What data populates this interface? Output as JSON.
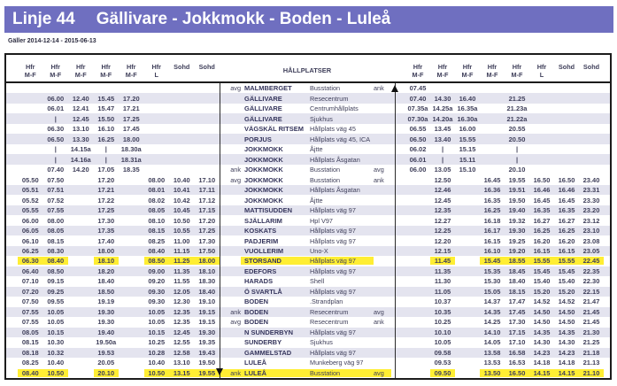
{
  "banner": {
    "line_label": "Linje 44",
    "route_label": "Gällivare - Jokkmokk - Boden - Luleå"
  },
  "validity": "Gäller 2014-12-14 - 2015-06-13",
  "colors": {
    "banner_bg": "#6f6fc0",
    "row_shade": "#e4e4ef",
    "highlight_yellow": "#ffee33",
    "text": "#3f3f5a",
    "border": "#1c1c1c"
  },
  "header": {
    "stops_label": "HÅLLPLATSER",
    "left_columns": [
      {
        "top": "Hfr",
        "bottom": "M-F"
      },
      {
        "top": "Hfr",
        "bottom": "M-F"
      },
      {
        "top": "Hfr",
        "bottom": "M-F"
      },
      {
        "top": "Hfr",
        "bottom": "M-F"
      },
      {
        "top": "Hfr",
        "bottom": "M-F"
      },
      {
        "top": "Hfr",
        "bottom": "L"
      },
      {
        "top": "",
        "bottom": "Sohd"
      },
      {
        "top": "",
        "bottom": "Sohd"
      }
    ],
    "right_columns": [
      {
        "top": "Hfr",
        "bottom": "M-F"
      },
      {
        "top": "Hfr",
        "bottom": "M-F"
      },
      {
        "top": "Hfr",
        "bottom": "M-F"
      },
      {
        "top": "Hfr",
        "bottom": "M-F"
      },
      {
        "top": "Hfr",
        "bottom": "M-F"
      },
      {
        "top": "Hfr",
        "bottom": "L"
      },
      {
        "top": "",
        "bottom": "Sohd"
      },
      {
        "top": "",
        "bottom": "Sohd"
      }
    ]
  },
  "icons": {
    "up_arrow": "direction-up-arrow",
    "down_arrow": "direction-down-arrow"
  },
  "rows": [
    {
      "prefix": "avg",
      "name": "MALMBERGET",
      "desc": "Busstation",
      "suffix": "ank",
      "shaded": false,
      "highlight": false,
      "left": [
        "",
        "",
        "",
        "",
        "",
        "",
        "",
        ""
      ],
      "right": [
        "07.45",
        "",
        "",
        "",
        "",
        "",
        "",
        ""
      ]
    },
    {
      "prefix": "",
      "name": "GÄLLIVARE",
      "desc": "Resecentrum",
      "suffix": "",
      "shaded": true,
      "highlight": false,
      "left": [
        "",
        "06.00",
        "12.40",
        "15.45",
        "17.20",
        "",
        "",
        ""
      ],
      "right": [
        "07.40",
        "14.30",
        "16.40",
        "",
        "21.25",
        "",
        "",
        ""
      ]
    },
    {
      "prefix": "",
      "name": "GÄLLIVARE",
      "desc": "Centrumhållplats",
      "suffix": "",
      "shaded": false,
      "highlight": false,
      "left": [
        "",
        "06.01",
        "12.41",
        "15.47",
        "17.21",
        "",
        "",
        ""
      ],
      "right": [
        "07.35a",
        "14.25a",
        "16.35a",
        "",
        "21.23a",
        "",
        "",
        ""
      ]
    },
    {
      "prefix": "",
      "name": "GÄLLIVARE",
      "desc": "Sjukhus",
      "suffix": "",
      "shaded": true,
      "highlight": false,
      "left": [
        "",
        "|",
        "12.45",
        "15.50",
        "17.25",
        "",
        "",
        ""
      ],
      "right": [
        "07.30a",
        "14.20a",
        "16.30a",
        "",
        "21.22a",
        "",
        "",
        ""
      ]
    },
    {
      "prefix": "",
      "name": "VÄGSKÄL RITSEM",
      "desc": "Hållplats väg 45",
      "suffix": "",
      "shaded": false,
      "highlight": false,
      "left": [
        "",
        "06.30",
        "13.10",
        "16.10",
        "17.45",
        "",
        "",
        ""
      ],
      "right": [
        "06.55",
        "13.45",
        "16.00",
        "",
        "20.55",
        "",
        "",
        ""
      ]
    },
    {
      "prefix": "",
      "name": "PORJUS",
      "desc": "Hållplats väg 45, ICA",
      "suffix": "",
      "shaded": true,
      "highlight": false,
      "left": [
        "",
        "06.50",
        "13.30",
        "16.25",
        "18.00",
        "",
        "",
        ""
      ],
      "right": [
        "06.50",
        "13.40",
        "15.55",
        "",
        "20.50",
        "",
        "",
        ""
      ]
    },
    {
      "prefix": "",
      "name": "JOKKMOKK",
      "desc": "Åjtte",
      "suffix": "",
      "shaded": false,
      "highlight": false,
      "left": [
        "",
        "|",
        "14.15a",
        "|",
        "18.30a",
        "",
        "",
        ""
      ],
      "right": [
        "06.02",
        "|",
        "15.15",
        "",
        "|",
        "",
        "",
        ""
      ]
    },
    {
      "prefix": "",
      "name": "JOKKMOKK",
      "desc": "Hållplats Åsgatan",
      "suffix": "",
      "shaded": true,
      "highlight": false,
      "left": [
        "",
        "|",
        "14.16a",
        "|",
        "18.31a",
        "",
        "",
        ""
      ],
      "right": [
        "06.01",
        "|",
        "15.11",
        "",
        "|",
        "",
        "",
        ""
      ]
    },
    {
      "prefix": "ank",
      "name": "JOKKMOKK",
      "desc": "Busstation",
      "suffix": "avg",
      "shaded": false,
      "highlight": false,
      "left": [
        "",
        "07.40",
        "14.20",
        "17.05",
        "18.35",
        "",
        "",
        ""
      ],
      "right": [
        "06.00",
        "13.05",
        "15.10",
        "",
        "20.10",
        "",
        "",
        ""
      ]
    },
    {
      "prefix": "avg",
      "name": "JOKKMOKK",
      "desc": "Busstation",
      "suffix": "ank",
      "shaded": false,
      "highlight": false,
      "left": [
        "05.50",
        "07.50",
        "",
        "17.20",
        "",
        "08.00",
        "10.40",
        "17.10"
      ],
      "right": [
        "",
        "12.50",
        "",
        "16.45",
        "19.55",
        "16.50",
        "16.50",
        "23.40"
      ]
    },
    {
      "prefix": "",
      "name": "JOKKMOKK",
      "desc": "Hållplats Åsgatan",
      "suffix": "",
      "shaded": true,
      "highlight": false,
      "left": [
        "05.51",
        "07.51",
        "",
        "17.21",
        "",
        "08.01",
        "10.41",
        "17.11"
      ],
      "right": [
        "",
        "12.46",
        "",
        "16.36",
        "19.51",
        "16.46",
        "16.46",
        "23.31"
      ]
    },
    {
      "prefix": "",
      "name": "JOKKMOKK",
      "desc": "Åjtte",
      "suffix": "",
      "shaded": false,
      "highlight": false,
      "left": [
        "05.52",
        "07.52",
        "",
        "17.22",
        "",
        "08.02",
        "10.42",
        "17.12"
      ],
      "right": [
        "",
        "12.45",
        "",
        "16.35",
        "19.50",
        "16.45",
        "16.45",
        "23.30"
      ]
    },
    {
      "prefix": "",
      "name": "MATTISUDDEN",
      "desc": "Hållplats väg 97",
      "suffix": "",
      "shaded": true,
      "highlight": false,
      "left": [
        "05.55",
        "07.55",
        "",
        "17.25",
        "",
        "08.05",
        "10.45",
        "17.15"
      ],
      "right": [
        "",
        "12.35",
        "",
        "16.25",
        "19.40",
        "16.35",
        "16.35",
        "23.20"
      ]
    },
    {
      "prefix": "",
      "name": "SJÄLLARIM",
      "desc": "Hpl V97",
      "suffix": "",
      "shaded": false,
      "highlight": false,
      "left": [
        "06.00",
        "08.00",
        "",
        "17.30",
        "",
        "08.10",
        "10.50",
        "17.20"
      ],
      "right": [
        "",
        "12.27",
        "",
        "16.18",
        "19.32",
        "16.27",
        "16.27",
        "23.12"
      ]
    },
    {
      "prefix": "",
      "name": "KOSKATS",
      "desc": "Hållplats väg 97",
      "suffix": "",
      "shaded": true,
      "highlight": false,
      "left": [
        "06.05",
        "08.05",
        "",
        "17.35",
        "",
        "08.15",
        "10.55",
        "17.25"
      ],
      "right": [
        "",
        "12.25",
        "",
        "16.17",
        "19.30",
        "16.25",
        "16.25",
        "23.10"
      ]
    },
    {
      "prefix": "",
      "name": "PADJERIM",
      "desc": "Hållplats väg 97",
      "suffix": "",
      "shaded": false,
      "highlight": false,
      "left": [
        "06.10",
        "08.15",
        "",
        "17.40",
        "",
        "08.25",
        "11.00",
        "17.30"
      ],
      "right": [
        "",
        "12.20",
        "",
        "16.15",
        "19.25",
        "16.20",
        "16.20",
        "23.08"
      ]
    },
    {
      "prefix": "",
      "name": "VUOLLERIM",
      "desc": "Uno-X",
      "suffix": "",
      "shaded": true,
      "highlight": false,
      "left": [
        "06.25",
        "08.30",
        "",
        "18.00",
        "",
        "08.40",
        "11.15",
        "17.50"
      ],
      "right": [
        "",
        "12.15",
        "",
        "16.10",
        "19.20",
        "16.15",
        "16.15",
        "23.05"
      ]
    },
    {
      "prefix": "",
      "name": "STORSAND",
      "desc": "Hållplats väg 97",
      "suffix": "",
      "shaded": false,
      "highlight": true,
      "left": [
        "06.30",
        "08.40",
        "",
        "18.10",
        "",
        "08.50",
        "11.25",
        "18.00"
      ],
      "right": [
        "",
        "11.45",
        "",
        "15.45",
        "18.55",
        "15.55",
        "15.55",
        "22.45"
      ]
    },
    {
      "prefix": "",
      "name": "EDEFORS",
      "desc": "Hållplats väg 97",
      "suffix": "",
      "shaded": true,
      "highlight": false,
      "left": [
        "06.40",
        "08.50",
        "",
        "18.20",
        "",
        "09.00",
        "11.35",
        "18.10"
      ],
      "right": [
        "",
        "11.35",
        "",
        "15.35",
        "18.45",
        "15.45",
        "15.45",
        "22.35"
      ]
    },
    {
      "prefix": "",
      "name": "HARADS",
      "desc": "Shell",
      "suffix": "",
      "shaded": false,
      "highlight": false,
      "left": [
        "07.10",
        "09.15",
        "",
        "18.40",
        "",
        "09.20",
        "11.55",
        "18.30"
      ],
      "right": [
        "",
        "11.30",
        "",
        "15.30",
        "18.40",
        "15.40",
        "15.40",
        "22.30"
      ]
    },
    {
      "prefix": "",
      "name": "Ö SVARTLÅ",
      "desc": "Hållplats väg 97",
      "suffix": "",
      "shaded": true,
      "highlight": false,
      "left": [
        "07.20",
        "09.25",
        "",
        "18.50",
        "",
        "09.30",
        "12.05",
        "18.40"
      ],
      "right": [
        "",
        "11.05",
        "",
        "15.05",
        "18.15",
        "15.20",
        "15.20",
        "22.15"
      ]
    },
    {
      "prefix": "",
      "name": "BODEN",
      "desc": ".Strandplan",
      "suffix": "",
      "shaded": false,
      "highlight": false,
      "left": [
        "07.50",
        "09.55",
        "",
        "19.19",
        "",
        "09.30",
        "12.30",
        "19.10"
      ],
      "right": [
        "",
        "10.37",
        "",
        "14.37",
        "17.47",
        "14.52",
        "14.52",
        "21.47"
      ]
    },
    {
      "prefix": "ank",
      "name": "BODEN",
      "desc": "Resecentrum",
      "suffix": "avg",
      "shaded": true,
      "highlight": false,
      "left": [
        "07.55",
        "10.05",
        "",
        "19.30",
        "",
        "10.05",
        "12.35",
        "19.15"
      ],
      "right": [
        "",
        "10.35",
        "",
        "14.35",
        "17.45",
        "14.50",
        "14.50",
        "21.45"
      ]
    },
    {
      "prefix": "avg",
      "name": "BODEN",
      "desc": "Resecentrum",
      "suffix": "ank",
      "shaded": false,
      "highlight": false,
      "left": [
        "07.55",
        "10.05",
        "",
        "19.30",
        "",
        "10.05",
        "12.35",
        "19.15"
      ],
      "right": [
        "",
        "10.25",
        "",
        "14.25",
        "17.30",
        "14.50",
        "14.50",
        "21.45"
      ]
    },
    {
      "prefix": "",
      "name": "N SUNDERBYN",
      "desc": "Hållplats väg 97",
      "suffix": "",
      "shaded": true,
      "highlight": false,
      "left": [
        "08.05",
        "10.15",
        "",
        "19.40",
        "",
        "10.15",
        "12.45",
        "19.30"
      ],
      "right": [
        "",
        "10.10",
        "",
        "14.10",
        "17.15",
        "14.35",
        "14.35",
        "21.30"
      ]
    },
    {
      "prefix": "",
      "name": "SUNDERBY",
      "desc": "Sjukhus",
      "suffix": "",
      "shaded": false,
      "highlight": false,
      "left": [
        "08.15",
        "10.30",
        "",
        "19.50a",
        "",
        "10.25",
        "12.55",
        "19.35"
      ],
      "right": [
        "",
        "10.05",
        "",
        "14.05",
        "17.10",
        "14.30",
        "14.30",
        "21.25"
      ]
    },
    {
      "prefix": "",
      "name": "GAMMELSTAD",
      "desc": "Hållplats väg 97",
      "suffix": "",
      "shaded": true,
      "highlight": false,
      "left": [
        "08.18",
        "10.32",
        "",
        "19.53",
        "",
        "10.28",
        "12.58",
        "19.43"
      ],
      "right": [
        "",
        "09.58",
        "",
        "13.58",
        "16.58",
        "14.23",
        "14.23",
        "21.18"
      ]
    },
    {
      "prefix": "",
      "name": "LULEÅ",
      "desc": "Munkeberg väg 97",
      "suffix": "",
      "shaded": false,
      "highlight": false,
      "left": [
        "08.25",
        "10.40",
        "",
        "20.05",
        "",
        "10.40",
        "13.10",
        "19.50"
      ],
      "right": [
        "",
        "09.53",
        "",
        "13.53",
        "16.53",
        "14.18",
        "14.18",
        "21.13"
      ]
    },
    {
      "prefix": "ank",
      "name": "LULEÅ",
      "desc": "Busstation",
      "suffix": "avg",
      "shaded": false,
      "highlight": true,
      "left": [
        "08.40",
        "10.50",
        "",
        "20.10",
        "",
        "10.50",
        "13.15",
        "19.55"
      ],
      "right": [
        "",
        "09.50",
        "",
        "13.50",
        "16.50",
        "14.15",
        "14.15",
        "21.10"
      ]
    }
  ]
}
